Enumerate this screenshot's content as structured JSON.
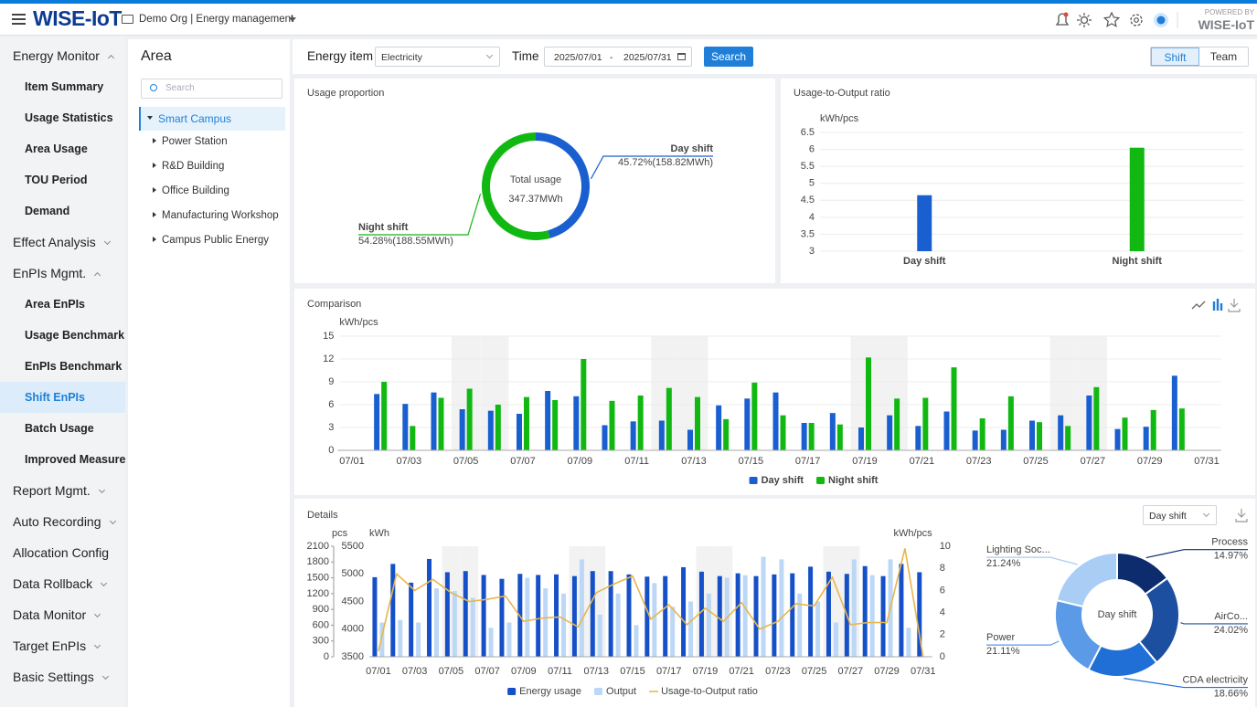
{
  "header": {
    "brand": "WISE-IoT",
    "breadcrumb": "Demo Org | Energy management",
    "powered_by": "POWERED BY",
    "powered_brand": "WISE-IoT"
  },
  "sidebar": {
    "groups": [
      {
        "label": "Energy Monitor",
        "expanded": true,
        "items": [
          "Item Summary",
          "Usage Statistics",
          "Area Usage",
          "TOU Period",
          "Demand"
        ]
      },
      {
        "label": "Effect Analysis",
        "expanded": false
      },
      {
        "label": "EnPIs Mgmt.",
        "expanded": true,
        "items": [
          "Area EnPIs",
          "Usage Benchmark",
          "EnPIs Benchmark",
          {
            "label": "Shift EnPIs",
            "selected": true
          },
          "Batch Usage",
          "Improved Measure"
        ]
      },
      {
        "label": "Report Mgmt.",
        "expanded": false
      },
      {
        "label": "Auto Recording",
        "expanded": false
      },
      {
        "label": "Allocation Config"
      },
      {
        "label": "Data Rollback",
        "expanded": false
      },
      {
        "label": "Data Monitor",
        "expanded": false
      },
      {
        "label": "Target EnPIs",
        "expanded": false
      },
      {
        "label": "Basic Settings",
        "expanded": false
      }
    ]
  },
  "area_panel": {
    "title": "Area",
    "search_placeholder": "Search",
    "tree": {
      "label": "Smart Campus",
      "selected": true,
      "children": [
        "Power Station",
        "R&D Building",
        "Office Building",
        "Manufacturing Workshop",
        "Campus Public Energy"
      ]
    }
  },
  "toolbar": {
    "energy_item_label": "Energy item",
    "energy_item": "Electricity",
    "time_label": "Time",
    "start_date": "2025/07/01",
    "date_separator": "-",
    "end_date": "2025/07/31",
    "search_button": "Search",
    "view_tabs": [
      "Shift",
      "Team"
    ],
    "active_tab": 0
  },
  "details_filter": "Day shift",
  "chart_data": [
    {
      "type": "donut",
      "title": "Usage proportion",
      "center_label": "Total usage",
      "center_value": "347.37MWh",
      "categories": [
        "Day shift",
        "Night shift"
      ],
      "values": [
        45.72,
        54.28
      ],
      "value_labels": [
        "45.72%(158.82MWh)",
        "54.28%(188.55MWh)"
      ],
      "colors": [
        "#1a5fd0",
        "#12b812"
      ]
    },
    {
      "type": "bar",
      "title": "Usage-to-Output ratio",
      "y_label": "kWh/pcs",
      "categories": [
        "Day shift",
        "Night shift"
      ],
      "values": [
        4.65,
        6.05
      ],
      "colors": [
        "#1a5fd0",
        "#12b812"
      ],
      "ylim": [
        3,
        6.5
      ],
      "yticks": [
        3,
        3.5,
        4,
        4.5,
        5,
        5.5,
        6,
        6.5
      ],
      "grid": true
    },
    {
      "type": "bar",
      "title": "Comparison",
      "y_label": "kWh/pcs",
      "categories": [
        "07/01",
        null,
        "07/03",
        null,
        "07/05",
        null,
        "07/07",
        null,
        "07/09",
        null,
        "07/11",
        null,
        "07/13",
        null,
        "07/15",
        null,
        "07/17",
        null,
        "07/19",
        null,
        "07/21",
        null,
        "07/23",
        null,
        "07/25",
        null,
        "07/27",
        null,
        "07/29",
        null,
        "07/31"
      ],
      "series": [
        {
          "name": "Day shift",
          "color": "#1a5fd0",
          "values": [
            null,
            7.4,
            6.1,
            7.6,
            5.4,
            5.2,
            4.8,
            7.8,
            7.1,
            3.3,
            3.8,
            3.9,
            2.7,
            5.9,
            6.8,
            7.6,
            3.6,
            4.9,
            3.0,
            4.6,
            3.2,
            5.1,
            2.6,
            2.7,
            3.9,
            4.6,
            7.2,
            2.8,
            3.1,
            9.8,
            null
          ]
        },
        {
          "name": "Night shift",
          "color": "#12b812",
          "values": [
            null,
            9.0,
            3.2,
            6.9,
            8.1,
            6.0,
            7.0,
            6.6,
            12.0,
            6.5,
            7.2,
            8.2,
            7.0,
            4.1,
            8.9,
            4.6,
            3.6,
            3.4,
            12.2,
            6.8,
            6.9,
            10.9,
            4.2,
            7.1,
            3.7,
            3.2,
            8.3,
            4.3,
            5.3,
            5.5,
            null
          ]
        }
      ],
      "ylim": [
        0,
        15
      ],
      "yticks": [
        0,
        3,
        6,
        9,
        12,
        15
      ],
      "grid": true,
      "legend": "bottom"
    },
    {
      "type": "combo",
      "title": "Details",
      "y_label": "kWh",
      "y2_label": "kWh/pcs",
      "y3_label": "pcs",
      "categories": [
        "07/01",
        null,
        "07/03",
        null,
        "07/05",
        null,
        "07/07",
        null,
        "07/09",
        null,
        "07/11",
        null,
        "07/13",
        null,
        "07/15",
        null,
        "07/17",
        null,
        "07/19",
        null,
        "07/21",
        null,
        "07/23",
        null,
        "07/25",
        null,
        "07/27",
        null,
        "07/29",
        null,
        "07/31"
      ],
      "series": [
        {
          "name": "Energy usage",
          "type": "bar",
          "axis": "y",
          "color": "#1550c8",
          "values": [
            4940,
            5180,
            4840,
            5270,
            5030,
            5050,
            4980,
            4910,
            5000,
            4980,
            4990,
            4960,
            5050,
            5050,
            4990,
            4950,
            4960,
            5120,
            5040,
            4960,
            5010,
            4960,
            4990,
            5010,
            5130,
            5040,
            5000,
            5140,
            4960,
            5180,
            5030
          ]
        },
        {
          "name": "Output",
          "type": "bar",
          "axis": "y3",
          "color": "#bcd8f6",
          "values": [
            650,
            700,
            650,
            1300,
            1250,
            1120,
            550,
            650,
            1500,
            1300,
            1200,
            1850,
            800,
            1200,
            600,
            1400,
            950,
            1050,
            1200,
            1500,
            1550,
            1900,
            1850,
            1200,
            1050,
            650,
            1850,
            1550,
            1850,
            550,
            null
          ]
        },
        {
          "name": "Usage-to-Output ratio",
          "type": "line",
          "axis": "y2",
          "color": "#e8b64c",
          "values": [
            0.5,
            7.5,
            6.0,
            7.0,
            5.8,
            5.0,
            5.2,
            5.5,
            3.2,
            3.5,
            3.6,
            2.7,
            5.8,
            6.6,
            7.3,
            3.4,
            4.7,
            2.9,
            4.4,
            3.2,
            4.9,
            2.5,
            3.2,
            4.8,
            4.6,
            7.2,
            2.9,
            3.1,
            3.1,
            9.8,
            0
          ]
        }
      ],
      "ylim": [
        3500,
        5500
      ],
      "yticks": [
        3500,
        4000,
        4500,
        5000,
        5500
      ],
      "y2lim": [
        0,
        10
      ],
      "y2ticks": [
        0,
        2,
        4,
        6,
        8,
        10
      ],
      "y3lim": [
        0,
        2100
      ],
      "y3ticks": [
        0,
        300,
        600,
        900,
        1200,
        1500,
        1800,
        2100
      ],
      "grid": false,
      "legend": "bottom"
    },
    {
      "type": "donut",
      "center_label": "Day shift",
      "categories": [
        "Process",
        "AirCo...",
        "CDA electricity",
        "Power",
        "Lighting Soc..."
      ],
      "values": [
        14.97,
        24.02,
        18.66,
        21.11,
        21.24
      ],
      "value_labels": [
        "14.97%",
        "24.02%",
        "18.66%",
        "21.11%",
        "21.24%"
      ],
      "colors": [
        "#0d2c6e",
        "#1d4fa0",
        "#1f6fd6",
        "#5a9ae6",
        "#a9cdf5"
      ]
    }
  ]
}
